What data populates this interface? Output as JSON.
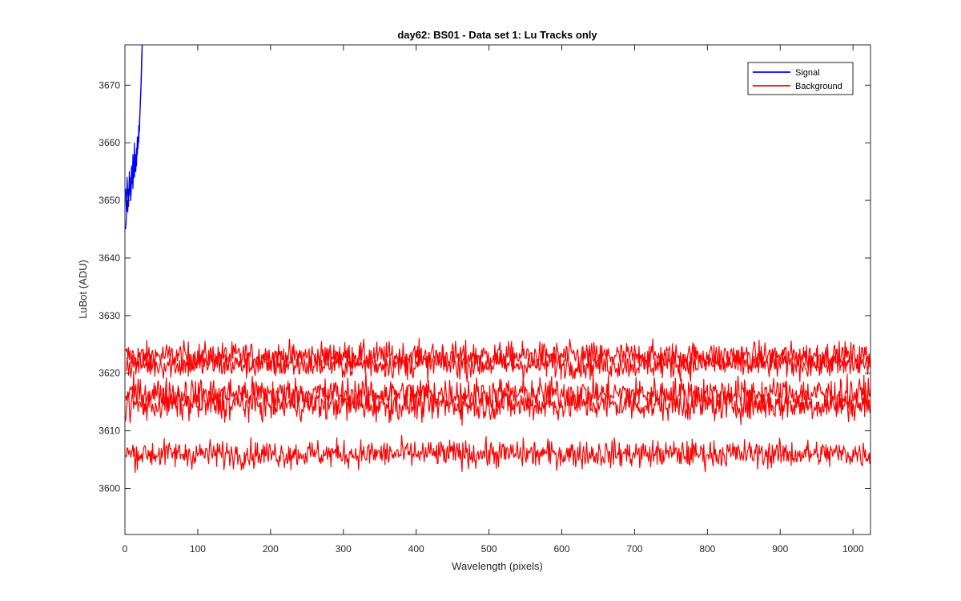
{
  "chart_data": {
    "type": "line",
    "title": "day62: BS01 - Data set 1: Lu Tracks only",
    "xlabel": "Wavelength (pixels)",
    "ylabel": "LuBot (ADU)",
    "xlim": [
      0,
      1024
    ],
    "ylim": [
      3592,
      3677
    ],
    "xticks": [
      0,
      100,
      200,
      300,
      400,
      500,
      600,
      700,
      800,
      900,
      1000
    ],
    "yticks": [
      3600,
      3610,
      3620,
      3630,
      3640,
      3650,
      3660,
      3670
    ],
    "grid": false,
    "legend_position": "top-right",
    "legend": [
      {
        "label": "Signal",
        "color": "#0000ff"
      },
      {
        "label": "Background",
        "color": "#ff0000"
      }
    ],
    "series": [
      {
        "name": "Signal",
        "color": "#0000ff",
        "x_start": 1,
        "x_end": 24,
        "values": [
          3645,
          3647,
          3650,
          3648,
          3652,
          3651,
          3654,
          3650,
          3653,
          3655,
          3652,
          3656,
          3654,
          3657,
          3655,
          3659,
          3658,
          3661,
          3660,
          3664,
          3666,
          3669,
          3673,
          3678
        ]
      },
      {
        "name": "Signal",
        "color": "#0000ff",
        "x_start": 1,
        "x_end": 24,
        "values": [
          3652,
          3648,
          3654,
          3651,
          3649,
          3655,
          3652,
          3650,
          3656,
          3653,
          3658,
          3654,
          3660,
          3655,
          3658,
          3656,
          3661,
          3659,
          3663,
          3662,
          3667,
          3670,
          3675,
          3678
        ]
      },
      {
        "name": "Background",
        "color": "#ff0000",
        "x_start": 1,
        "x_end": 1024,
        "mean": 3623,
        "noise": 1.5
      },
      {
        "name": "Background",
        "color": "#ff0000",
        "x_start": 1,
        "x_end": 1024,
        "mean": 3621.5,
        "noise": 1.5
      },
      {
        "name": "Background",
        "color": "#ff0000",
        "x_start": 1,
        "x_end": 1024,
        "mean": 3616.5,
        "noise": 1.7
      },
      {
        "name": "Background",
        "color": "#ff0000",
        "x_start": 1,
        "x_end": 1024,
        "mean": 3614.5,
        "noise": 1.7
      },
      {
        "name": "Background",
        "color": "#ff0000",
        "x_start": 1,
        "x_end": 1024,
        "mean": 3606,
        "noise": 1.5
      }
    ]
  }
}
